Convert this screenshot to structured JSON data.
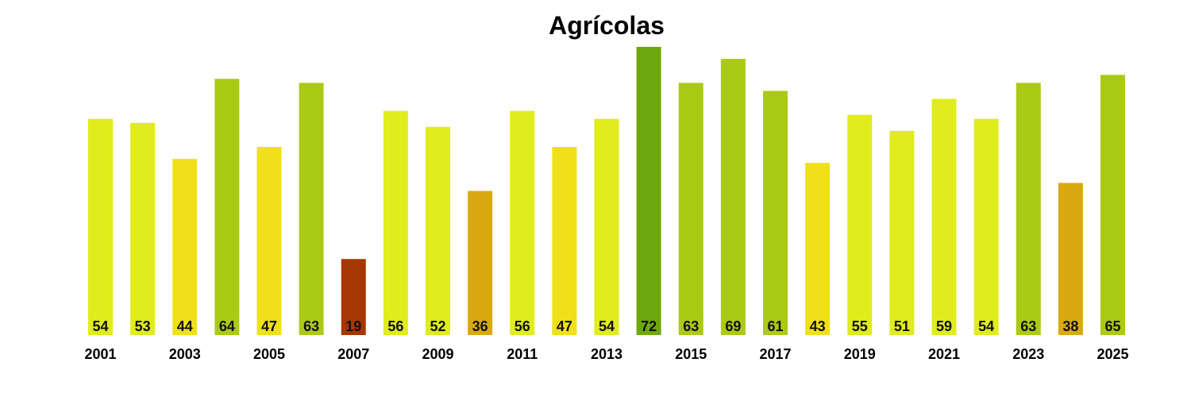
{
  "chart_data": {
    "type": "bar",
    "title": "Agrícolas",
    "xlabel": "",
    "ylabel": "",
    "ylim": [
      0,
      72
    ],
    "grid": false,
    "categories": [
      "2001",
      "2002",
      "2003",
      "2004",
      "2005",
      "2006",
      "2007",
      "2008",
      "2009",
      "2010",
      "2011",
      "2012",
      "2013",
      "2014",
      "2015",
      "2016",
      "2017",
      "2018",
      "2019",
      "2020",
      "2021",
      "2022",
      "2023",
      "2024",
      "2025"
    ],
    "x_tick_labels": [
      "2001",
      "2003",
      "2005",
      "2007",
      "2009",
      "2011",
      "2013",
      "2015",
      "2017",
      "2019",
      "2021",
      "2023",
      "2025"
    ],
    "values": [
      54,
      53,
      44,
      64,
      47,
      63,
      19,
      56,
      52,
      36,
      56,
      47,
      54,
      72,
      63,
      69,
      61,
      43,
      55,
      51,
      59,
      54,
      63,
      38,
      65
    ],
    "color_scale": [
      {
        "min": 0,
        "color": "#A63603"
      },
      {
        "min": 30,
        "color": "#D8A910"
      },
      {
        "min": 40,
        "color": "#F0E01A"
      },
      {
        "min": 50,
        "color": "#E0EC1C"
      },
      {
        "min": 60,
        "color": "#AACA16"
      },
      {
        "min": 70,
        "color": "#6EA80F"
      }
    ]
  }
}
